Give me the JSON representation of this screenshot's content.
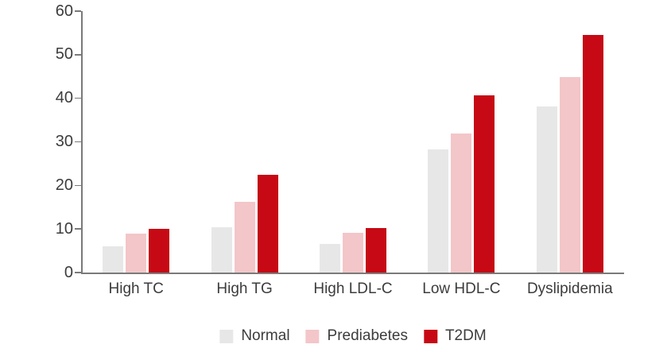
{
  "chart_data": {
    "type": "bar",
    "title": "",
    "categories": [
      "High TC",
      "High TG",
      "High LDL-C",
      "Low HDL-C",
      "Dyslipidemia"
    ],
    "series": [
      {
        "name": "Normal",
        "color": "#e7e7e7",
        "values": [
          6.1,
          10.4,
          6.5,
          28.2,
          38.2
        ]
      },
      {
        "name": "Prediabetes",
        "color": "#f3c6c9",
        "values": [
          8.9,
          16.2,
          9.1,
          31.9,
          44.9
        ]
      },
      {
        "name": "T2DM",
        "color": "#c60914",
        "values": [
          10.0,
          22.4,
          10.2,
          40.6,
          54.6
        ]
      }
    ],
    "xlabel": "",
    "ylabel": "",
    "ylim": [
      0,
      60
    ],
    "yticks": [
      0,
      10,
      20,
      30,
      40,
      50,
      60
    ],
    "grid": false,
    "legend_position": "bottom",
    "colors": {
      "axis": "#7a7a7a",
      "text": "#3c3c3c",
      "background": "#ffffff"
    }
  }
}
